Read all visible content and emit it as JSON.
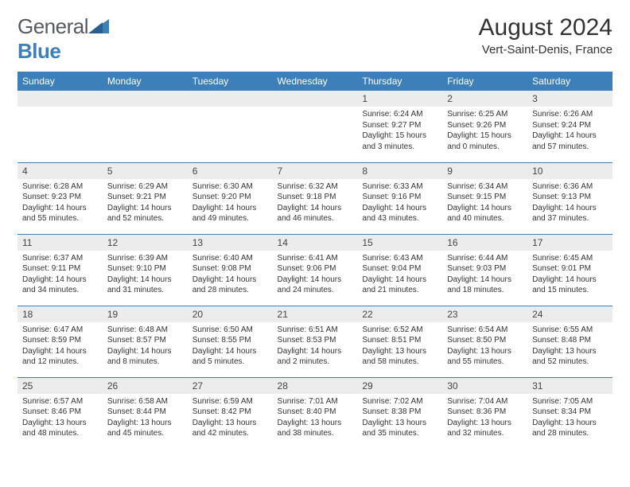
{
  "logo": {
    "word1": "General",
    "word2": "Blue"
  },
  "title": "August 2024",
  "subtitle": "Vert-Saint-Denis, France",
  "colors": {
    "header_bg": "#3d7fb8",
    "daynum_bg": "#ececec",
    "text": "#333333"
  },
  "day_headers": [
    "Sunday",
    "Monday",
    "Tuesday",
    "Wednesday",
    "Thursday",
    "Friday",
    "Saturday"
  ],
  "weeks": [
    [
      null,
      null,
      null,
      null,
      {
        "n": "1",
        "sr": "Sunrise: 6:24 AM",
        "ss": "Sunset: 9:27 PM",
        "d1": "Daylight: 15 hours",
        "d2": "and 3 minutes."
      },
      {
        "n": "2",
        "sr": "Sunrise: 6:25 AM",
        "ss": "Sunset: 9:26 PM",
        "d1": "Daylight: 15 hours",
        "d2": "and 0 minutes."
      },
      {
        "n": "3",
        "sr": "Sunrise: 6:26 AM",
        "ss": "Sunset: 9:24 PM",
        "d1": "Daylight: 14 hours",
        "d2": "and 57 minutes."
      }
    ],
    [
      {
        "n": "4",
        "sr": "Sunrise: 6:28 AM",
        "ss": "Sunset: 9:23 PM",
        "d1": "Daylight: 14 hours",
        "d2": "and 55 minutes."
      },
      {
        "n": "5",
        "sr": "Sunrise: 6:29 AM",
        "ss": "Sunset: 9:21 PM",
        "d1": "Daylight: 14 hours",
        "d2": "and 52 minutes."
      },
      {
        "n": "6",
        "sr": "Sunrise: 6:30 AM",
        "ss": "Sunset: 9:20 PM",
        "d1": "Daylight: 14 hours",
        "d2": "and 49 minutes."
      },
      {
        "n": "7",
        "sr": "Sunrise: 6:32 AM",
        "ss": "Sunset: 9:18 PM",
        "d1": "Daylight: 14 hours",
        "d2": "and 46 minutes."
      },
      {
        "n": "8",
        "sr": "Sunrise: 6:33 AM",
        "ss": "Sunset: 9:16 PM",
        "d1": "Daylight: 14 hours",
        "d2": "and 43 minutes."
      },
      {
        "n": "9",
        "sr": "Sunrise: 6:34 AM",
        "ss": "Sunset: 9:15 PM",
        "d1": "Daylight: 14 hours",
        "d2": "and 40 minutes."
      },
      {
        "n": "10",
        "sr": "Sunrise: 6:36 AM",
        "ss": "Sunset: 9:13 PM",
        "d1": "Daylight: 14 hours",
        "d2": "and 37 minutes."
      }
    ],
    [
      {
        "n": "11",
        "sr": "Sunrise: 6:37 AM",
        "ss": "Sunset: 9:11 PM",
        "d1": "Daylight: 14 hours",
        "d2": "and 34 minutes."
      },
      {
        "n": "12",
        "sr": "Sunrise: 6:39 AM",
        "ss": "Sunset: 9:10 PM",
        "d1": "Daylight: 14 hours",
        "d2": "and 31 minutes."
      },
      {
        "n": "13",
        "sr": "Sunrise: 6:40 AM",
        "ss": "Sunset: 9:08 PM",
        "d1": "Daylight: 14 hours",
        "d2": "and 28 minutes."
      },
      {
        "n": "14",
        "sr": "Sunrise: 6:41 AM",
        "ss": "Sunset: 9:06 PM",
        "d1": "Daylight: 14 hours",
        "d2": "and 24 minutes."
      },
      {
        "n": "15",
        "sr": "Sunrise: 6:43 AM",
        "ss": "Sunset: 9:04 PM",
        "d1": "Daylight: 14 hours",
        "d2": "and 21 minutes."
      },
      {
        "n": "16",
        "sr": "Sunrise: 6:44 AM",
        "ss": "Sunset: 9:03 PM",
        "d1": "Daylight: 14 hours",
        "d2": "and 18 minutes."
      },
      {
        "n": "17",
        "sr": "Sunrise: 6:45 AM",
        "ss": "Sunset: 9:01 PM",
        "d1": "Daylight: 14 hours",
        "d2": "and 15 minutes."
      }
    ],
    [
      {
        "n": "18",
        "sr": "Sunrise: 6:47 AM",
        "ss": "Sunset: 8:59 PM",
        "d1": "Daylight: 14 hours",
        "d2": "and 12 minutes."
      },
      {
        "n": "19",
        "sr": "Sunrise: 6:48 AM",
        "ss": "Sunset: 8:57 PM",
        "d1": "Daylight: 14 hours",
        "d2": "and 8 minutes."
      },
      {
        "n": "20",
        "sr": "Sunrise: 6:50 AM",
        "ss": "Sunset: 8:55 PM",
        "d1": "Daylight: 14 hours",
        "d2": "and 5 minutes."
      },
      {
        "n": "21",
        "sr": "Sunrise: 6:51 AM",
        "ss": "Sunset: 8:53 PM",
        "d1": "Daylight: 14 hours",
        "d2": "and 2 minutes."
      },
      {
        "n": "22",
        "sr": "Sunrise: 6:52 AM",
        "ss": "Sunset: 8:51 PM",
        "d1": "Daylight: 13 hours",
        "d2": "and 58 minutes."
      },
      {
        "n": "23",
        "sr": "Sunrise: 6:54 AM",
        "ss": "Sunset: 8:50 PM",
        "d1": "Daylight: 13 hours",
        "d2": "and 55 minutes."
      },
      {
        "n": "24",
        "sr": "Sunrise: 6:55 AM",
        "ss": "Sunset: 8:48 PM",
        "d1": "Daylight: 13 hours",
        "d2": "and 52 minutes."
      }
    ],
    [
      {
        "n": "25",
        "sr": "Sunrise: 6:57 AM",
        "ss": "Sunset: 8:46 PM",
        "d1": "Daylight: 13 hours",
        "d2": "and 48 minutes."
      },
      {
        "n": "26",
        "sr": "Sunrise: 6:58 AM",
        "ss": "Sunset: 8:44 PM",
        "d1": "Daylight: 13 hours",
        "d2": "and 45 minutes."
      },
      {
        "n": "27",
        "sr": "Sunrise: 6:59 AM",
        "ss": "Sunset: 8:42 PM",
        "d1": "Daylight: 13 hours",
        "d2": "and 42 minutes."
      },
      {
        "n": "28",
        "sr": "Sunrise: 7:01 AM",
        "ss": "Sunset: 8:40 PM",
        "d1": "Daylight: 13 hours",
        "d2": "and 38 minutes."
      },
      {
        "n": "29",
        "sr": "Sunrise: 7:02 AM",
        "ss": "Sunset: 8:38 PM",
        "d1": "Daylight: 13 hours",
        "d2": "and 35 minutes."
      },
      {
        "n": "30",
        "sr": "Sunrise: 7:04 AM",
        "ss": "Sunset: 8:36 PM",
        "d1": "Daylight: 13 hours",
        "d2": "and 32 minutes."
      },
      {
        "n": "31",
        "sr": "Sunrise: 7:05 AM",
        "ss": "Sunset: 8:34 PM",
        "d1": "Daylight: 13 hours",
        "d2": "and 28 minutes."
      }
    ]
  ]
}
